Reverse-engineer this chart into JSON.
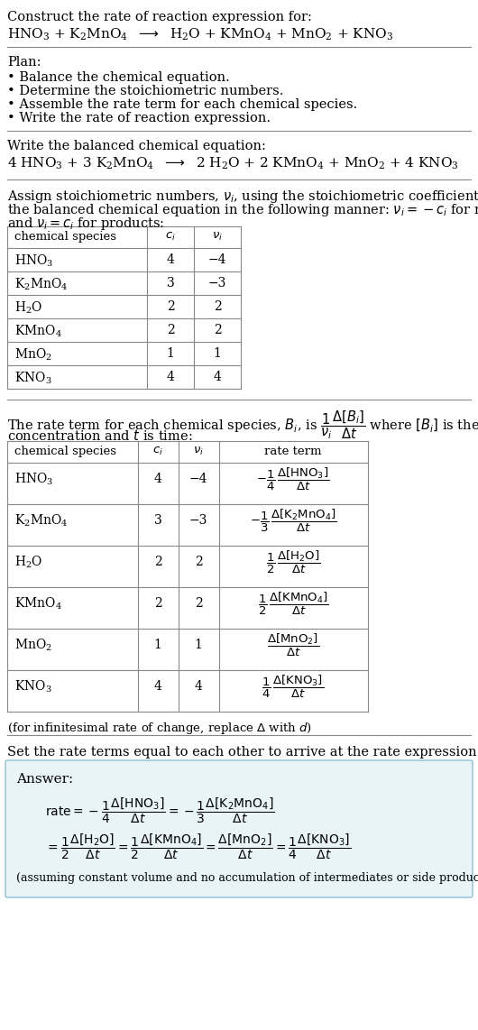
{
  "bg_color": "#ffffff",
  "text_color": "#000000",
  "table_line_color": "#aaaaaa",
  "answer_box_color": "#e8f4f8",
  "answer_box_border": "#a0c8d8",
  "plan_items": [
    "• Balance the chemical equation.",
    "• Determine the stoichiometric numbers.",
    "• Assemble the rate term for each chemical species.",
    "• Write the rate of reaction expression."
  ],
  "table1_rows": [
    [
      "HNO_3",
      "4",
      "−4"
    ],
    [
      "K_2MnO_4",
      "3",
      "−3"
    ],
    [
      "H_2O",
      "2",
      "2"
    ],
    [
      "KMnO_4",
      "2",
      "2"
    ],
    [
      "MnO_2",
      "1",
      "1"
    ],
    [
      "KNO_3",
      "4",
      "4"
    ]
  ],
  "sp_list": [
    "HNO_3",
    "K_2MnO_4",
    "H_2O",
    "KMnO_4",
    "MnO_2",
    "KNO_3"
  ],
  "ci_list": [
    "4",
    "3",
    "2",
    "2",
    "1",
    "4"
  ],
  "nu_list": [
    "−4",
    "−3",
    "2",
    "2",
    "1",
    "4"
  ]
}
